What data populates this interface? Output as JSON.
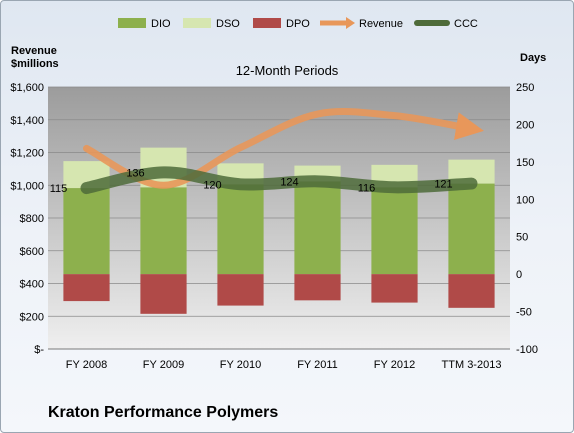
{
  "company": "Kraton Performance Polymers",
  "chart_data": {
    "type": "bar",
    "title": "12-Month Periods",
    "categories": [
      "FY 2008",
      "FY 2009",
      "FY 2010",
      "FY 2011",
      "FY 2012",
      "TTM 3-2013"
    ],
    "left_axis": {
      "label_line1": "Revenue",
      "label_line2": "$millions",
      "range": [
        0,
        1600
      ],
      "ticks": [
        "$-",
        "$200",
        "$400",
        "$600",
        "$800",
        "$1,000",
        "$1,200",
        "$1,400",
        "$1,600"
      ]
    },
    "right_axis": {
      "label": "Days",
      "range": [
        -100,
        250
      ],
      "ticks": [
        "-100",
        "-50",
        "0",
        "50",
        "100",
        "150",
        "200",
        "250"
      ]
    },
    "legend": [
      "DIO",
      "DSO",
      "DPO",
      "Revenue",
      "CCC"
    ],
    "legend_position": "top",
    "series": [
      {
        "name": "DIO",
        "axis": "right",
        "type": "stacked-bar",
        "values": [
          115,
          116,
          120,
          124,
          116,
          121
        ]
      },
      {
        "name": "DSO",
        "axis": "right",
        "type": "stacked-bar",
        "values": [
          36,
          53,
          28,
          21,
          30,
          32
        ]
      },
      {
        "name": "DPO",
        "axis": "right",
        "type": "stacked-bar",
        "values": [
          -36,
          -53,
          -42,
          -35,
          -38,
          -45
        ]
      },
      {
        "name": "Revenue",
        "axis": "left",
        "type": "line",
        "values": [
          1225,
          1000,
          1230,
          1435,
          1425,
          1345
        ]
      },
      {
        "name": "CCC",
        "axis": "right",
        "type": "line",
        "values": [
          115,
          136,
          120,
          124,
          116,
          121
        ]
      }
    ],
    "data_labels": [
      "115",
      "136",
      "120",
      "124",
      "116",
      "121"
    ],
    "grid": true
  },
  "colors": {
    "DIO": "#8db04d",
    "DSO": "#d6e6b0",
    "DPO": "#b04a48",
    "Revenue": "#e8975a",
    "CCC": "#4e6b3a",
    "plot_bg_top": "#a3a3a3",
    "plot_bg_bottom": "#ececec"
  }
}
